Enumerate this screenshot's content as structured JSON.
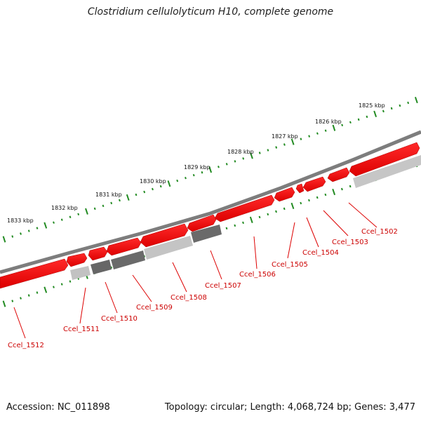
{
  "title": "Clostridium cellulolyticum H10, complete genome",
  "footer": {
    "accession": "Accession: NC_011898",
    "summary": "Topology: circular; Length: 4,068,724 bp; Genes: 3,477"
  },
  "ruler_labels": [
    "1825 kbp",
    "1826 kbp",
    "1827 kbp",
    "1828 kbp",
    "1829 kbp",
    "1830 kbp",
    "1831 kbp",
    "1832 kbp",
    "1833 kbp"
  ],
  "gene_labels": [
    "Ccel_1502",
    "Ccel_1503",
    "Ccel_1504",
    "Ccel_1505",
    "Ccel_1506",
    "Ccel_1507",
    "Ccel_1508",
    "Ccel_1509",
    "Ccel_1510",
    "Ccel_1511",
    "Ccel_1512"
  ],
  "colors": {
    "forward_gene": "#ee0000",
    "backbone": "#808080",
    "tick": "#228b22",
    "label": "#cc0000",
    "reverse_light": "#c8c8c8",
    "reverse_dark": "#666666"
  }
}
